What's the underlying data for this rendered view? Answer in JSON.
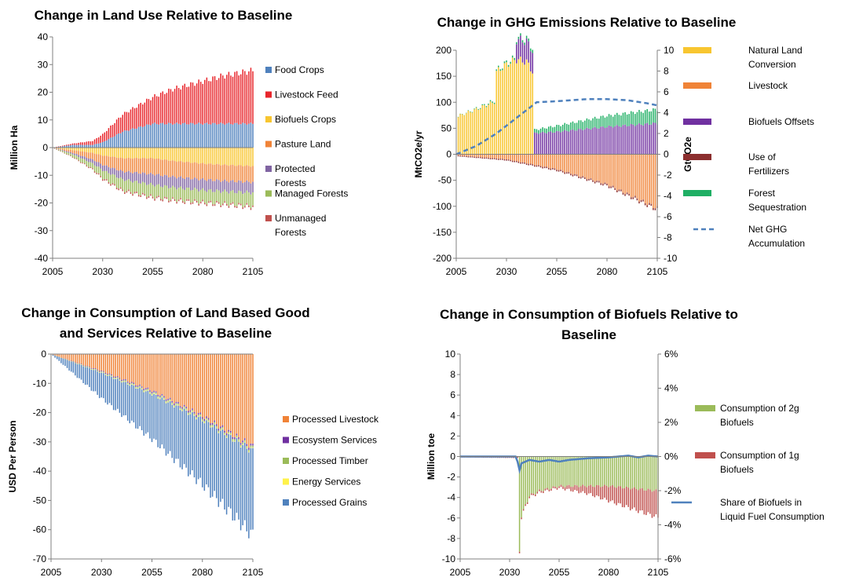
{
  "chart_data": [
    {
      "id": "land_use",
      "type": "bar",
      "title": "Change in Land Use Relative to Baseline",
      "xlabel": "",
      "ylabel": "Million Ha",
      "ylim": [
        -40,
        40
      ],
      "yticks": [
        40,
        30,
        20,
        10,
        0,
        -10,
        -20,
        -30,
        -40
      ],
      "x_ticks": [
        "2005",
        "2030",
        "2055",
        "2080",
        "2105"
      ],
      "x_range": [
        2005,
        2105
      ],
      "stacked": true,
      "grid": false,
      "legend": "right",
      "series": [
        {
          "name": "Food Crops",
          "color": "#4F81BD",
          "x": [
            2005,
            2015,
            2025,
            2030,
            2040,
            2055,
            2065,
            2080,
            2090,
            2105
          ],
          "values": [
            0,
            1,
            1,
            2,
            6,
            9,
            9,
            9,
            9,
            9
          ]
        },
        {
          "name": "Livestock Feed",
          "color": "#E8262C",
          "x": [
            2005,
            2015,
            2025,
            2030,
            2040,
            2055,
            2065,
            2080,
            2090,
            2105
          ],
          "values": [
            0,
            0.5,
            1.5,
            3,
            6.5,
            10,
            13,
            16,
            18,
            20
          ]
        },
        {
          "name": "Biofuels Crops",
          "color": "#F8C630",
          "x": [
            2005,
            2015,
            2025,
            2030,
            2040,
            2055,
            2065,
            2080,
            2090,
            2105
          ],
          "values": [
            0,
            -1,
            -2,
            -3,
            -4,
            -4,
            -5,
            -6,
            -6.5,
            -7
          ]
        },
        {
          "name": "Pasture Land",
          "color": "#F08337",
          "x": [
            2005,
            2015,
            2025,
            2030,
            2040,
            2055,
            2065,
            2080,
            2090,
            2105
          ],
          "values": [
            0,
            -1,
            -2.5,
            -3.5,
            -5,
            -6,
            -6,
            -6,
            -6,
            -6
          ]
        },
        {
          "name": "Protected Forests",
          "color": "#8064A2",
          "x": [
            2005,
            2015,
            2025,
            2030,
            2040,
            2055,
            2065,
            2080,
            2090,
            2105
          ],
          "values": [
            0,
            -0.5,
            -1.5,
            -2,
            -3,
            -4,
            -4,
            -4,
            -4,
            -4
          ]
        },
        {
          "name": "Managed Forests",
          "color": "#9BBB59",
          "x": [
            2005,
            2015,
            2025,
            2030,
            2040,
            2055,
            2065,
            2080,
            2090,
            2105
          ],
          "values": [
            0,
            -1,
            -2,
            -3,
            -4,
            -4.5,
            -4.5,
            -4.5,
            -4.5,
            -5
          ]
        },
        {
          "name": "Unmanaged Forests",
          "color": "#C0504D",
          "x": [
            2005,
            2015,
            2025,
            2030,
            2040,
            2055,
            2065,
            2080,
            2090,
            2105
          ],
          "values": [
            0,
            -0.2,
            -0.4,
            -0.5,
            -0.6,
            -0.6,
            -0.6,
            -0.6,
            -0.6,
            -0.6
          ]
        }
      ]
    },
    {
      "id": "ghg",
      "type": "bar",
      "title": "Change in GHG Emissions Relative to Baseline",
      "xlabel": "",
      "ylabel": "MtCO2e/yr",
      "y2label": "GtCO2e",
      "ylim": [
        -200,
        200
      ],
      "yticks": [
        200,
        150,
        100,
        50,
        0,
        -50,
        -100,
        -150,
        -200
      ],
      "y2lim": [
        -10,
        10
      ],
      "y2ticks": [
        10,
        8,
        6,
        4,
        2,
        0,
        -2,
        -4,
        -6,
        -8,
        -10
      ],
      "x_ticks": [
        "2005",
        "2030",
        "2055",
        "2080",
        "2105"
      ],
      "x_range": [
        2005,
        2105
      ],
      "stacked": true,
      "grid": false,
      "legend": "right",
      "series": [
        {
          "name": "Natural Land Conversion",
          "color": "#F8C630",
          "x": [
            2005,
            2015,
            2024,
            2025,
            2030,
            2035,
            2040,
            2043,
            2044
          ],
          "values": [
            75,
            90,
            105,
            165,
            180,
            190,
            185,
            165,
            0
          ]
        },
        {
          "name": "Livestock",
          "color": "#F08337",
          "x": [
            2005,
            2030,
            2055,
            2080,
            2105
          ],
          "values": [
            -2,
            -10,
            -30,
            -60,
            -108
          ]
        },
        {
          "name": "Biofuels Offsets",
          "color": "#7030A0",
          "x": [
            2005,
            2030,
            2034,
            2035,
            2055,
            2080,
            2105
          ],
          "values": [
            0,
            0,
            0,
            40,
            45,
            55,
            62
          ]
        },
        {
          "name": "Use of Fertilizers",
          "color": "#8B2E2E",
          "x": [
            2005,
            2105
          ],
          "values": [
            -2,
            -4
          ]
        },
        {
          "name": "Forest Sequestration",
          "color": "#1FAF64",
          "x": [
            2005,
            2040,
            2055,
            2080,
            2105
          ],
          "values": [
            0,
            5,
            12,
            22,
            28
          ]
        },
        {
          "name": "Net GHG Accumulation",
          "color": "#4F81BD",
          "axis": "secondary",
          "type": "line",
          "style": "dashed",
          "x": [
            2005,
            2015,
            2025,
            2035,
            2045,
            2055,
            2070,
            2080,
            2090,
            2100,
            2105
          ],
          "values": [
            0,
            0.8,
            2,
            3.5,
            5,
            5.1,
            5.3,
            5.3,
            5.2,
            4.9,
            4.7
          ]
        }
      ]
    },
    {
      "id": "consumption_land",
      "type": "bar",
      "title": "Change in Consumption of Land Based Good and Services Relative to Baseline",
      "title_lines": [
        "Change in Consumption of Land Based Good",
        "and Services Relative to Baseline"
      ],
      "xlabel": "",
      "ylabel": "USD Per Person",
      "ylim": [
        -70,
        0
      ],
      "yticks": [
        0,
        -10,
        -20,
        -30,
        -40,
        -50,
        -60,
        -70
      ],
      "x_ticks": [
        "2005",
        "2030",
        "2055",
        "2080",
        "2105"
      ],
      "x_range": [
        2005,
        2105
      ],
      "stacked": true,
      "grid": false,
      "legend": "right",
      "series": [
        {
          "name": "Processed Livestock",
          "color": "#F08337",
          "x": [
            2005,
            2030,
            2055,
            2080,
            2105
          ],
          "values": [
            0,
            -6,
            -13,
            -22,
            -33
          ]
        },
        {
          "name": "Ecosystem Services",
          "color": "#7030A0",
          "x": [
            2005,
            2030,
            2055,
            2080,
            2105
          ],
          "values": [
            0,
            -0.3,
            -0.5,
            -0.6,
            -0.7
          ]
        },
        {
          "name": "Processed Timber",
          "color": "#9BBB59",
          "x": [
            2005,
            2030,
            2055,
            2080,
            2105
          ],
          "values": [
            0,
            -0.3,
            -0.5,
            -0.6,
            -0.7
          ]
        },
        {
          "name": "Energy Services",
          "color": "#FFF24A",
          "x": [
            2005,
            2030,
            2055,
            2080,
            2105
          ],
          "values": [
            0,
            -0.1,
            -0.2,
            -0.2,
            -0.2
          ]
        },
        {
          "name": "Processed Grains",
          "color": "#4F81BD",
          "x": [
            2005,
            2030,
            2055,
            2080,
            2105
          ],
          "values": [
            0,
            -9,
            -16,
            -23,
            -30
          ]
        }
      ]
    },
    {
      "id": "biofuels",
      "type": "bar",
      "title": "Change in Consumption of Biofuels Relative to Baseline",
      "title_lines": [
        "Change in Consumption of Biofuels Relative to",
        "Baseline"
      ],
      "xlabel": "",
      "ylabel": "Million toe",
      "ylim": [
        -10,
        10
      ],
      "yticks": [
        10,
        8,
        6,
        4,
        2,
        0,
        -2,
        -4,
        -6,
        -8,
        -10
      ],
      "y2lim": [
        -6,
        6
      ],
      "y2ticks": [
        "6%",
        "4%",
        "2%",
        "0%",
        "-2%",
        "-4%",
        "-6%"
      ],
      "x_ticks": [
        "2005",
        "2030",
        "2055",
        "2080",
        "2105"
      ],
      "x_range": [
        2005,
        2105
      ],
      "stacked": true,
      "grid": false,
      "legend": "right",
      "series": [
        {
          "name": "Consumption of 2g Biofuels",
          "color": "#9BBB59",
          "x": [
            2005,
            2034,
            2035,
            2036,
            2038,
            2040,
            2045,
            2055,
            2080,
            2105
          ],
          "values": [
            0,
            0,
            -9.5,
            -6,
            -5,
            -4,
            -3.5,
            -3,
            -3,
            -3.5
          ]
        },
        {
          "name": "Consumption of 1g Biofuels",
          "color": "#C0504D",
          "x": [
            2005,
            2055,
            2070,
            2080,
            2090,
            2105
          ],
          "values": [
            -0.1,
            -0.2,
            -0.8,
            -1.5,
            -2,
            -2.7
          ]
        },
        {
          "name": "Share of Biofuels in Liquid Fuel Consumption",
          "color": "#4F81BD",
          "axis": "secondary",
          "type": "line",
          "x": [
            2005,
            2033,
            2034,
            2035,
            2036,
            2040,
            2045,
            2050,
            2055,
            2060,
            2065,
            2070,
            2080,
            2090,
            2095,
            2100,
            2105
          ],
          "values": [
            0,
            0,
            -0.3,
            -0.8,
            -0.4,
            -0.2,
            -0.3,
            -0.2,
            -0.3,
            -0.2,
            -0.15,
            -0.1,
            -0.05,
            0.05,
            -0.05,
            0.05,
            0
          ]
        }
      ]
    }
  ]
}
